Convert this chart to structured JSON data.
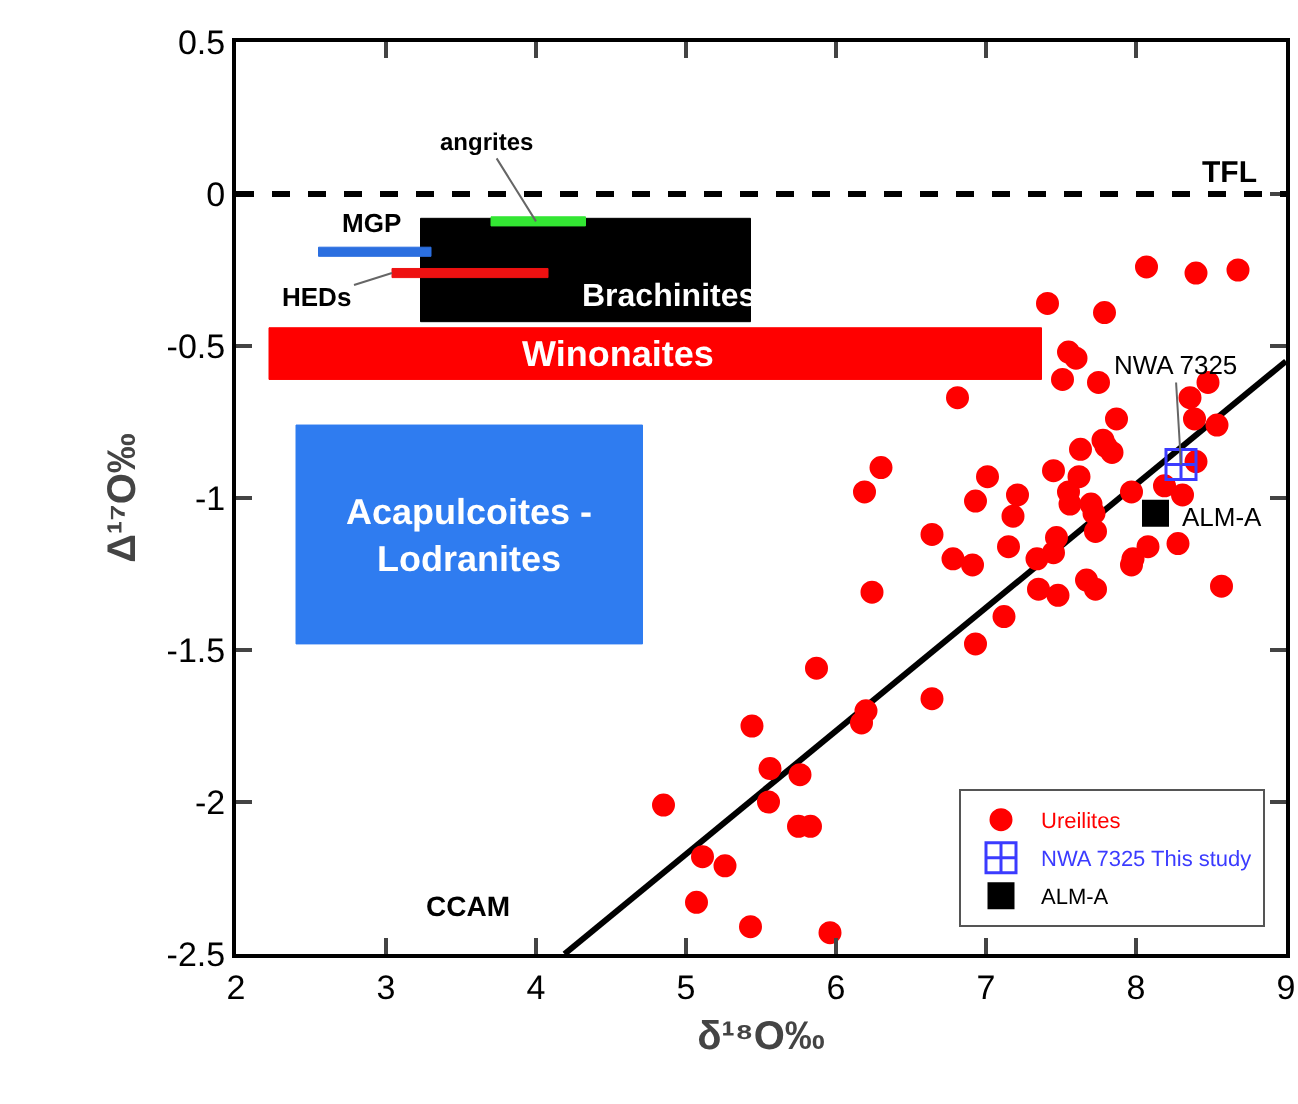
{
  "chart_data": {
    "type": "scatter",
    "xlabel": "δ¹⁸O‰",
    "ylabel": "Δ¹⁷O‰",
    "xlim": [
      2,
      9
    ],
    "ylim": [
      -2.5,
      0.5
    ],
    "xticks": [
      2,
      3,
      4,
      5,
      6,
      7,
      8,
      9
    ],
    "yticks": [
      0.5,
      0,
      -0.5,
      -1,
      -1.5,
      -2,
      -2.5
    ],
    "grid": false,
    "legend": "bottom right",
    "ref_lines": [
      {
        "axis": "y",
        "value": 0,
        "line_style": "dashed",
        "color": "#000000"
      }
    ],
    "series": [
      {
        "type": "area",
        "color": "#000000",
        "x": [
          3.23,
          5.43,
          5.43,
          3.23,
          3.23
        ],
        "values": [
          -0.08,
          -0.08,
          -0.42,
          -0.42,
          -0.08
        ]
      },
      {
        "type": "area",
        "color": "#ff0000",
        "x": [
          2.22,
          7.37,
          7.37,
          2.22,
          2.22
        ],
        "values": [
          -0.44,
          -0.44,
          -0.61,
          -0.61,
          -0.44
        ]
      },
      {
        "type": "area",
        "color": "#2f7cf0",
        "x": [
          2.4,
          4.71,
          4.71,
          2.4,
          2.4
        ],
        "values": [
          -0.76,
          -0.76,
          -1.48,
          -1.48,
          -0.76
        ]
      },
      {
        "type": "area",
        "color": "#33e633",
        "x": [
          3.7,
          4.33,
          4.33,
          3.7,
          3.7
        ],
        "values": [
          -0.075,
          -0.075,
          -0.105,
          -0.105,
          -0.075
        ]
      },
      {
        "type": "area",
        "color": "#2b6fe0",
        "x": [
          2.55,
          3.3,
          3.3,
          2.55,
          2.55
        ],
        "values": [
          -0.175,
          -0.175,
          -0.205,
          -0.205,
          -0.175
        ]
      },
      {
        "type": "area",
        "color": "#ee1111",
        "x": [
          3.04,
          4.08,
          4.08,
          3.04,
          3.04
        ],
        "values": [
          -0.245,
          -0.245,
          -0.275,
          -0.275,
          -0.245
        ]
      },
      {
        "type": "line",
        "color": "#000000",
        "x": [
          4.19,
          9
        ],
        "values": [
          -2.5,
          -0.55
        ],
        "line_style": "solid",
        "marker": "none"
      },
      {
        "name": "Ureilites",
        "color": "#ff0000",
        "marker": "circle",
        "x": [
          8.07,
          8.4,
          8.68,
          7.41,
          7.79,
          7.55,
          7.6,
          7.51,
          7.75,
          8.48,
          6.81,
          8.36,
          7.87,
          8.39,
          8.54,
          7.63,
          7.78,
          7.8,
          7.84,
          6.3,
          8.4,
          6.19,
          7.01,
          7.45,
          7.62,
          7.21,
          6.93,
          7.55,
          7.56,
          7.7,
          7.72,
          7.97,
          8.19,
          8.31,
          7.18,
          6.64,
          7.47,
          7.73,
          7.45,
          6.78,
          6.91,
          7.15,
          7.34,
          8.08,
          8.28,
          7.97,
          7.98,
          6.24,
          7.35,
          7.48,
          7.67,
          7.73,
          8.57,
          7.12,
          6.93,
          6.64,
          6.2,
          6.17,
          5.87,
          5.44,
          5.56,
          5.76,
          5.55,
          4.85,
          5.75,
          5.83,
          5.11,
          5.26,
          5.07,
          5.43,
          5.96
        ],
        "values": [
          -0.24,
          -0.26,
          -0.25,
          -0.36,
          -0.39,
          -0.52,
          -0.54,
          -0.61,
          -0.62,
          -0.62,
          -0.67,
          -0.67,
          -0.74,
          -0.74,
          -0.76,
          -0.84,
          -0.81,
          -0.83,
          -0.85,
          -0.9,
          -0.88,
          -0.98,
          -0.93,
          -0.91,
          -0.93,
          -0.99,
          -1.01,
          -0.98,
          -1.02,
          -1.02,
          -1.05,
          -0.98,
          -0.96,
          -0.99,
          -1.06,
          -1.12,
          -1.13,
          -1.11,
          -1.18,
          -1.2,
          -1.22,
          -1.16,
          -1.2,
          -1.16,
          -1.15,
          -1.22,
          -1.2,
          -1.31,
          -1.3,
          -1.32,
          -1.27,
          -1.3,
          -1.29,
          -1.39,
          -1.48,
          -1.66,
          -1.7,
          -1.74,
          -1.56,
          -1.75,
          -1.89,
          -1.91,
          -2,
          -2.01,
          -2.08,
          -2.08,
          -2.18,
          -2.21,
          -2.33,
          -2.41,
          -2.43
        ]
      },
      {
        "name": "NWA 7325 This study",
        "color": "#3b3bff",
        "marker": "cross",
        "x": [
          8.3
        ],
        "values": [
          -0.89
        ]
      },
      {
        "name": "ALM-A",
        "color": "#000000",
        "marker": "square",
        "x": [
          8.13
        ],
        "values": [
          -1.05
        ]
      }
    ],
    "annotations": [
      {
        "text": "angrites",
        "x": 4.0,
        "y": -0.09
      },
      {
        "text": "MGP",
        "x": 2.9,
        "y": -0.175
      },
      {
        "text": "HEDs",
        "x": 3.04,
        "y": -0.26
      },
      "Brachinites",
      "Winonaites",
      "Acapulcoites -\nLodranites",
      "TFL",
      "CCAM",
      {
        "text": "NWA 7325",
        "x": 8.3,
        "y": -0.89
      },
      "ALM-A"
    ]
  }
}
